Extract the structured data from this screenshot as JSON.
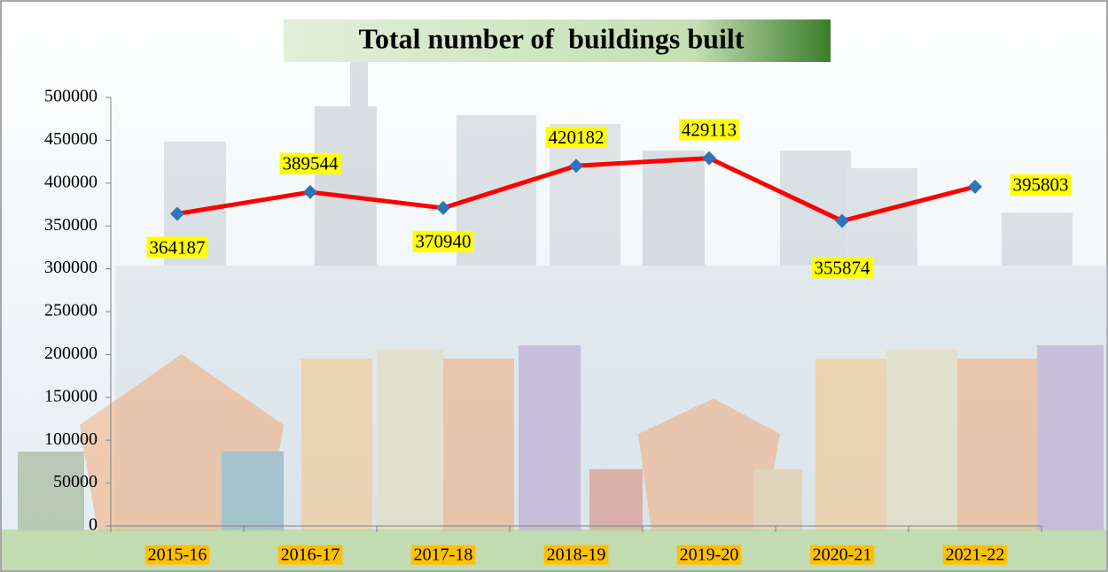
{
  "chart_data": {
    "type": "line",
    "title": "Total number of  buildings built",
    "categories": [
      "2015-16",
      "2016-17",
      "2017-18",
      "2018-19",
      "2019-20",
      "2020-21",
      "2021-22"
    ],
    "values": [
      364187,
      389544,
      370940,
      420182,
      429113,
      355874,
      395803
    ],
    "color": "#ff0000",
    "marker_color": "#2e75b6",
    "ylim": [
      0,
      500000
    ],
    "yticks": [
      0,
      50000,
      100000,
      150000,
      200000,
      250000,
      300000,
      350000,
      400000,
      450000,
      500000
    ]
  }
}
